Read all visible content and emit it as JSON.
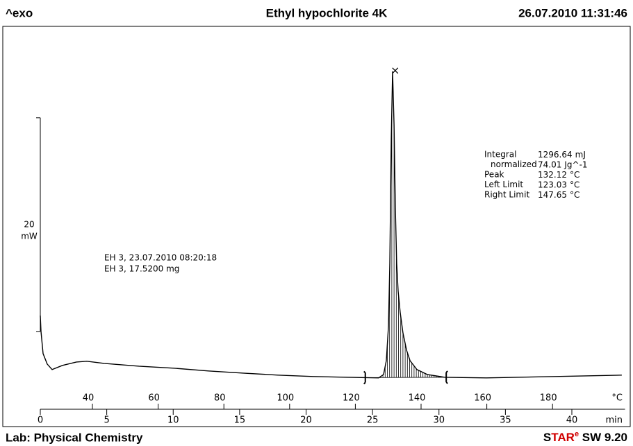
{
  "chart_data": {
    "type": "line",
    "header_left": "^exo",
    "title": "Ethyl hypochlorite 4K",
    "header_right": "26.07.2010 11:31:46",
    "footer_left": "Lab: Physical Chemistry",
    "footer_right": [
      "S",
      "TAR",
      "e",
      " SW 9.20"
    ],
    "x": [
      0,
      0.05,
      0.21,
      0.52,
      0.89,
      1.67,
      2.72,
      3.5,
      4.81,
      7.42,
      10.04,
      12.65,
      15.27,
      17.88,
      20.5,
      23.11,
      25.46,
      25.83,
      26.04,
      26.2,
      26.3,
      26.41,
      26.51,
      26.62,
      26.72,
      26.82,
      26.93,
      27.08,
      27.29,
      27.56,
      27.82,
      28.34,
      29.12,
      30.43,
      33.57,
      38.8,
      43.76
    ],
    "values": [
      5.84,
      4.35,
      2.27,
      1.3,
      0.78,
      1.17,
      1.49,
      1.56,
      1.36,
      1.1,
      0.91,
      0.65,
      0.45,
      0.26,
      0.13,
      0.06,
      0,
      0.32,
      1.62,
      4.87,
      10.71,
      22.4,
      28.7,
      23.7,
      15.91,
      10.71,
      8.12,
      6.17,
      4.22,
      2.6,
      1.62,
      0.78,
      0.32,
      0.06,
      0,
      0.13,
      0.26
    ],
    "color": "#000000",
    "xlim": [
      0,
      44
    ],
    "xticks": [
      0,
      5,
      10,
      15,
      20,
      25,
      30,
      35,
      40
    ],
    "xunit": "min",
    "x2lim": [
      24.14,
      202.05
    ],
    "x2ticks": [
      40,
      60,
      80,
      100,
      120,
      140,
      160,
      180
    ],
    "x2unit": "°C",
    "ylim": [
      -3,
      32
    ],
    "scale_bar": {
      "from": 4.35,
      "to": 24.35,
      "label": "20",
      "unit": "mW"
    },
    "annotations": [
      "EH 3, 23.07.2010 08:20:18",
      "EH 3, 17.5200 mg"
    ],
    "results": [
      {
        "label": "Integral",
        "value": 1296.64,
        "unit": "mJ"
      },
      {
        "label": "normalized",
        "value": 74.01,
        "unit": "Jg^-1"
      },
      {
        "label": "Peak",
        "value": 132.12,
        "unit": "°C"
      },
      {
        "label": "Left Limit",
        "value": 123.03,
        "unit": "°C"
      },
      {
        "label": "Right Limit",
        "value": 147.65,
        "unit": "°C"
      }
    ]
  }
}
